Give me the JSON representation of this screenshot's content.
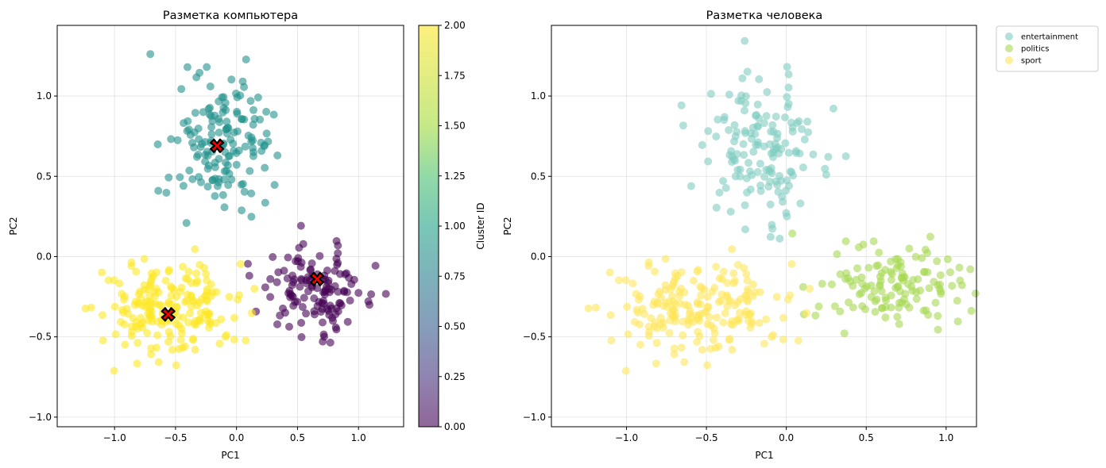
{
  "chart_data": [
    {
      "type": "scatter",
      "title": "Разметка компьютера",
      "xlabel": "PC1",
      "ylabel": "PC2",
      "xlim": [
        -1.47,
        1.37
      ],
      "ylim": [
        -1.06,
        1.44
      ],
      "xticks": [
        -1.0,
        -0.5,
        0.0,
        0.5,
        1.0
      ],
      "xtick_labels": [
        "−1.0",
        "−0.5",
        "0.0",
        "0.5",
        "1.0"
      ],
      "yticks": [
        -1.0,
        -0.5,
        0.0,
        0.5,
        1.0
      ],
      "ytick_labels": [
        "−1.0",
        "−0.5",
        "0.0",
        "0.5",
        "1.0"
      ],
      "grid": true,
      "colormap": "viridis",
      "point_alpha": 0.6,
      "colorbar": {
        "label": "Cluster ID",
        "range": [
          0.0,
          2.0
        ],
        "ticks": [
          "0.00",
          "0.25",
          "0.50",
          "0.75",
          "1.00",
          "1.25",
          "1.50",
          "1.75",
          "2.00"
        ]
      },
      "clusters": [
        {
          "id": 0,
          "color": "#440154",
          "center": [
            0.65,
            -0.2
          ],
          "spread": [
            0.22,
            0.13
          ],
          "count": 130
        },
        {
          "id": 1,
          "color": "#21918c",
          "center": [
            -0.15,
            0.68
          ],
          "spread": [
            0.2,
            0.22
          ],
          "count": 150
        },
        {
          "id": 2,
          "color": "#fde725",
          "center": [
            -0.55,
            -0.33
          ],
          "spread": [
            0.28,
            0.15
          ],
          "count": 200
        }
      ],
      "centroids": [
        {
          "x": -0.16,
          "y": 0.69
        },
        {
          "x": 0.66,
          "y": -0.14
        },
        {
          "x": -0.56,
          "y": -0.36
        }
      ],
      "centroid_marker": {
        "shape": "X",
        "color": "#ff0000",
        "edge": "#000000"
      }
    },
    {
      "type": "scatter",
      "title": "Разметка человека",
      "xlabel": "PC1",
      "ylabel": "PC2",
      "xlim": [
        -1.47,
        1.19
      ],
      "ylim": [
        -1.06,
        1.44
      ],
      "xticks": [
        -1.0,
        -0.5,
        0.0,
        0.5,
        1.0
      ],
      "xtick_labels": [
        "−1.0",
        "−0.5",
        "0.0",
        "0.5",
        "1.0"
      ],
      "yticks": [
        -1.0,
        -0.5,
        0.0,
        0.5,
        1.0
      ],
      "ytick_labels": [
        "−1.0",
        "−0.5",
        "0.0",
        "0.5",
        "1.0"
      ],
      "grid": true,
      "point_alpha": 0.6,
      "legend_placement": "outside-top-right",
      "series": [
        {
          "name": "entertainment",
          "color": "#80cdc1",
          "center": [
            -0.15,
            0.68
          ],
          "spread": [
            0.2,
            0.22
          ],
          "count": 150
        },
        {
          "name": "politics",
          "color": "#a6d854",
          "center": [
            0.65,
            -0.2
          ],
          "spread": [
            0.22,
            0.13
          ],
          "count": 130
        },
        {
          "name": "sport",
          "color": "#ffe65c",
          "center": [
            -0.55,
            -0.33
          ],
          "spread": [
            0.28,
            0.15
          ],
          "count": 200
        }
      ]
    }
  ]
}
